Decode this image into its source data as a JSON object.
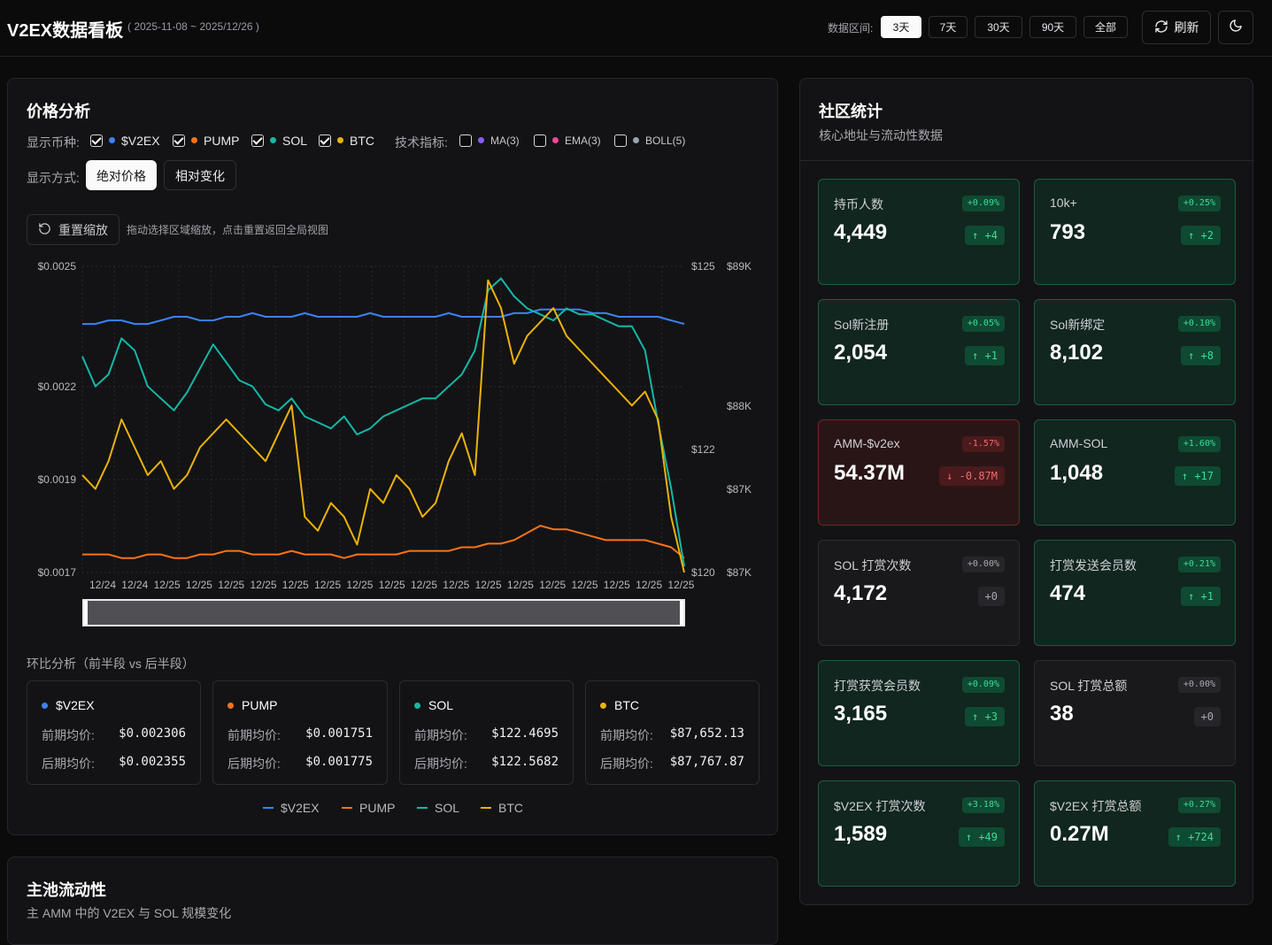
{
  "header": {
    "title": "V2EX数据看板",
    "date_range": "( 2025-11-08 ~ 2025/12/26 )",
    "range_label": "数据区间:",
    "ranges": [
      "3天",
      "7天",
      "30天",
      "90天",
      "全部"
    ],
    "active_range": "3天",
    "refresh_label": "刷新"
  },
  "price": {
    "title": "价格分析",
    "coins_label": "显示币种:",
    "coins": [
      {
        "name": "$V2EX",
        "color": "#3b82f6",
        "checked": true
      },
      {
        "name": "PUMP",
        "color": "#f97316",
        "checked": true
      },
      {
        "name": "SOL",
        "color": "#14b8a6",
        "checked": true
      },
      {
        "name": "BTC",
        "color": "#eab308",
        "checked": true
      }
    ],
    "indicators_label": "技术指标:",
    "indicators": [
      {
        "name": "MA(3)",
        "color": "#8b5cf6",
        "checked": false
      },
      {
        "name": "EMA(3)",
        "color": "#ec4899",
        "checked": false
      },
      {
        "name": "BOLL(5)",
        "color": "#9ca3af",
        "checked": false
      }
    ],
    "mode_label": "显示方式:",
    "modes": [
      "绝对价格",
      "相对变化"
    ],
    "reset_label": "重置缩放",
    "zoom_hint": "拖动选择区域缩放，点击重置返回全局视图",
    "compare_title": "环比分析（前半段 vs 后半段）",
    "prev_label": "前期均价:",
    "next_label": "后期均价:",
    "compare": [
      {
        "name": "$V2EX",
        "color": "#3b82f6",
        "prev": "$0.002306",
        "next": "$0.002355"
      },
      {
        "name": "PUMP",
        "color": "#f97316",
        "prev": "$0.001751",
        "next": "$0.001775"
      },
      {
        "name": "SOL",
        "color": "#14b8a6",
        "prev": "$122.4695",
        "next": "$122.5682"
      },
      {
        "name": "BTC",
        "color": "#eab308",
        "prev": "$87,652.13",
        "next": "$87,767.87"
      }
    ]
  },
  "chart_data": {
    "type": "line",
    "x_ticks": [
      "12/24",
      "12/24",
      "12/25",
      "12/25",
      "12/25",
      "12/25",
      "12/25",
      "12/25",
      "12/25",
      "12/25",
      "12/25",
      "12/25",
      "12/25",
      "12/25",
      "12/25",
      "12/25",
      "12/25",
      "12/25",
      "12/25"
    ],
    "y_left_ticks": [
      "$0.0025",
      "$0.0022",
      "$0.0019",
      "$0.0017"
    ],
    "y_left_range": [
      0.00167,
      0.00252
    ],
    "y_sol_ticks": [
      "$125",
      "$122",
      "$120"
    ],
    "y_sol_range": [
      119.9,
      125.0
    ],
    "y_btc_ticks": [
      "$89K",
      "$88K",
      "$87K",
      "$87K"
    ],
    "y_btc_range": [
      86800,
      89000
    ],
    "grid": true,
    "legend": "bottom",
    "series": [
      {
        "name": "$V2EX",
        "axis": "left",
        "color": "#3b82f6",
        "values": [
          0.00236,
          0.00236,
          0.00237,
          0.00237,
          0.00236,
          0.00236,
          0.00237,
          0.00238,
          0.00238,
          0.00237,
          0.00237,
          0.00238,
          0.00238,
          0.00239,
          0.00238,
          0.00238,
          0.00238,
          0.00239,
          0.00238,
          0.00238,
          0.00238,
          0.00238,
          0.00239,
          0.00238,
          0.00238,
          0.00238,
          0.00238,
          0.00238,
          0.00239,
          0.00238,
          0.00238,
          0.00238,
          0.00238,
          0.00239,
          0.00239,
          0.0024,
          0.0024,
          0.0024,
          0.0024,
          0.00239,
          0.00239,
          0.00238,
          0.00238,
          0.00238,
          0.00238,
          0.00237,
          0.00236
        ]
      },
      {
        "name": "PUMP",
        "axis": "left",
        "color": "#f97316",
        "values": [
          0.00172,
          0.00172,
          0.00172,
          0.00171,
          0.00171,
          0.00172,
          0.00172,
          0.00171,
          0.00171,
          0.00172,
          0.00172,
          0.00173,
          0.00173,
          0.00172,
          0.00172,
          0.00172,
          0.00173,
          0.00172,
          0.00172,
          0.00172,
          0.00171,
          0.00172,
          0.00172,
          0.00172,
          0.00172,
          0.00173,
          0.00173,
          0.00173,
          0.00173,
          0.00174,
          0.00174,
          0.00175,
          0.00175,
          0.00176,
          0.00178,
          0.0018,
          0.00179,
          0.00179,
          0.00178,
          0.00177,
          0.00176,
          0.00176,
          0.00176,
          0.00176,
          0.00175,
          0.00174,
          0.00171
        ]
      },
      {
        "name": "SOL",
        "axis": "sol",
        "color": "#14b8a6",
        "values": [
          123.5,
          123.0,
          123.2,
          123.8,
          123.6,
          123.0,
          122.8,
          122.6,
          122.9,
          123.3,
          123.7,
          123.4,
          123.1,
          123.0,
          122.7,
          122.6,
          122.8,
          122.5,
          122.4,
          122.3,
          122.5,
          122.2,
          122.3,
          122.5,
          122.6,
          122.7,
          122.8,
          122.8,
          123.0,
          123.2,
          123.6,
          124.6,
          124.8,
          124.5,
          124.3,
          124.2,
          124.1,
          124.3,
          124.2,
          124.2,
          124.1,
          124.0,
          124.0,
          123.6,
          122.4,
          121.3,
          120.0
        ]
      },
      {
        "name": "BTC",
        "axis": "btc",
        "color": "#eab308",
        "values": [
          87500,
          87400,
          87600,
          87900,
          87700,
          87500,
          87600,
          87400,
          87500,
          87700,
          87800,
          87900,
          87800,
          87700,
          87600,
          87800,
          88000,
          87200,
          87100,
          87300,
          87200,
          87000,
          87400,
          87300,
          87500,
          87400,
          87200,
          87300,
          87600,
          87800,
          87500,
          88900,
          88700,
          88300,
          88500,
          88600,
          88700,
          88500,
          88400,
          88300,
          88200,
          88100,
          88000,
          88100,
          87900,
          87200,
          86800
        ]
      }
    ]
  },
  "liquidity": {
    "title": "主池流动性",
    "subtitle": "主 AMM 中的 V2EX 与 SOL 规模变化"
  },
  "community": {
    "title": "社区统计",
    "subtitle": "核心地址与流动性数据",
    "cards": [
      {
        "label": "持币人数",
        "value": "4,449",
        "pct": "+0.09%",
        "delta": "↑ +4",
        "state": "pos"
      },
      {
        "label": "10k+",
        "value": "793",
        "pct": "+0.25%",
        "delta": "↑ +2",
        "state": "pos"
      },
      {
        "label": "Sol新注册",
        "value": "2,054",
        "pct": "+0.05%",
        "delta": "↑ +1",
        "state": "pos"
      },
      {
        "label": "Sol新绑定",
        "value": "8,102",
        "pct": "+0.10%",
        "delta": "↑ +8",
        "state": "pos"
      },
      {
        "label": "AMM-$v2ex",
        "value": "54.37M",
        "pct": "-1.57%",
        "delta": "↓ -0.87M",
        "state": "neg"
      },
      {
        "label": "AMM-SOL",
        "value": "1,048",
        "pct": "+1.60%",
        "delta": "↑ +17",
        "state": "pos"
      },
      {
        "label": "SOL 打赏次数",
        "value": "4,172",
        "pct": "+0.00%",
        "delta": "+0",
        "state": "neutral"
      },
      {
        "label": "打赏发送会员数",
        "value": "474",
        "pct": "+0.21%",
        "delta": "↑ +1",
        "state": "pos"
      },
      {
        "label": "打赏获赏会员数",
        "value": "3,165",
        "pct": "+0.09%",
        "delta": "↑ +3",
        "state": "pos"
      },
      {
        "label": "SOL 打赏总额",
        "value": "38",
        "pct": "+0.00%",
        "delta": "+0",
        "state": "neutral"
      },
      {
        "label": "$V2EX 打赏次数",
        "value": "1,589",
        "pct": "+3.18%",
        "delta": "↑ +49",
        "state": "pos"
      },
      {
        "label": "$V2EX 打赏总额",
        "value": "0.27M",
        "pct": "+0.27%",
        "delta": "↑ +724",
        "state": "pos"
      }
    ]
  }
}
